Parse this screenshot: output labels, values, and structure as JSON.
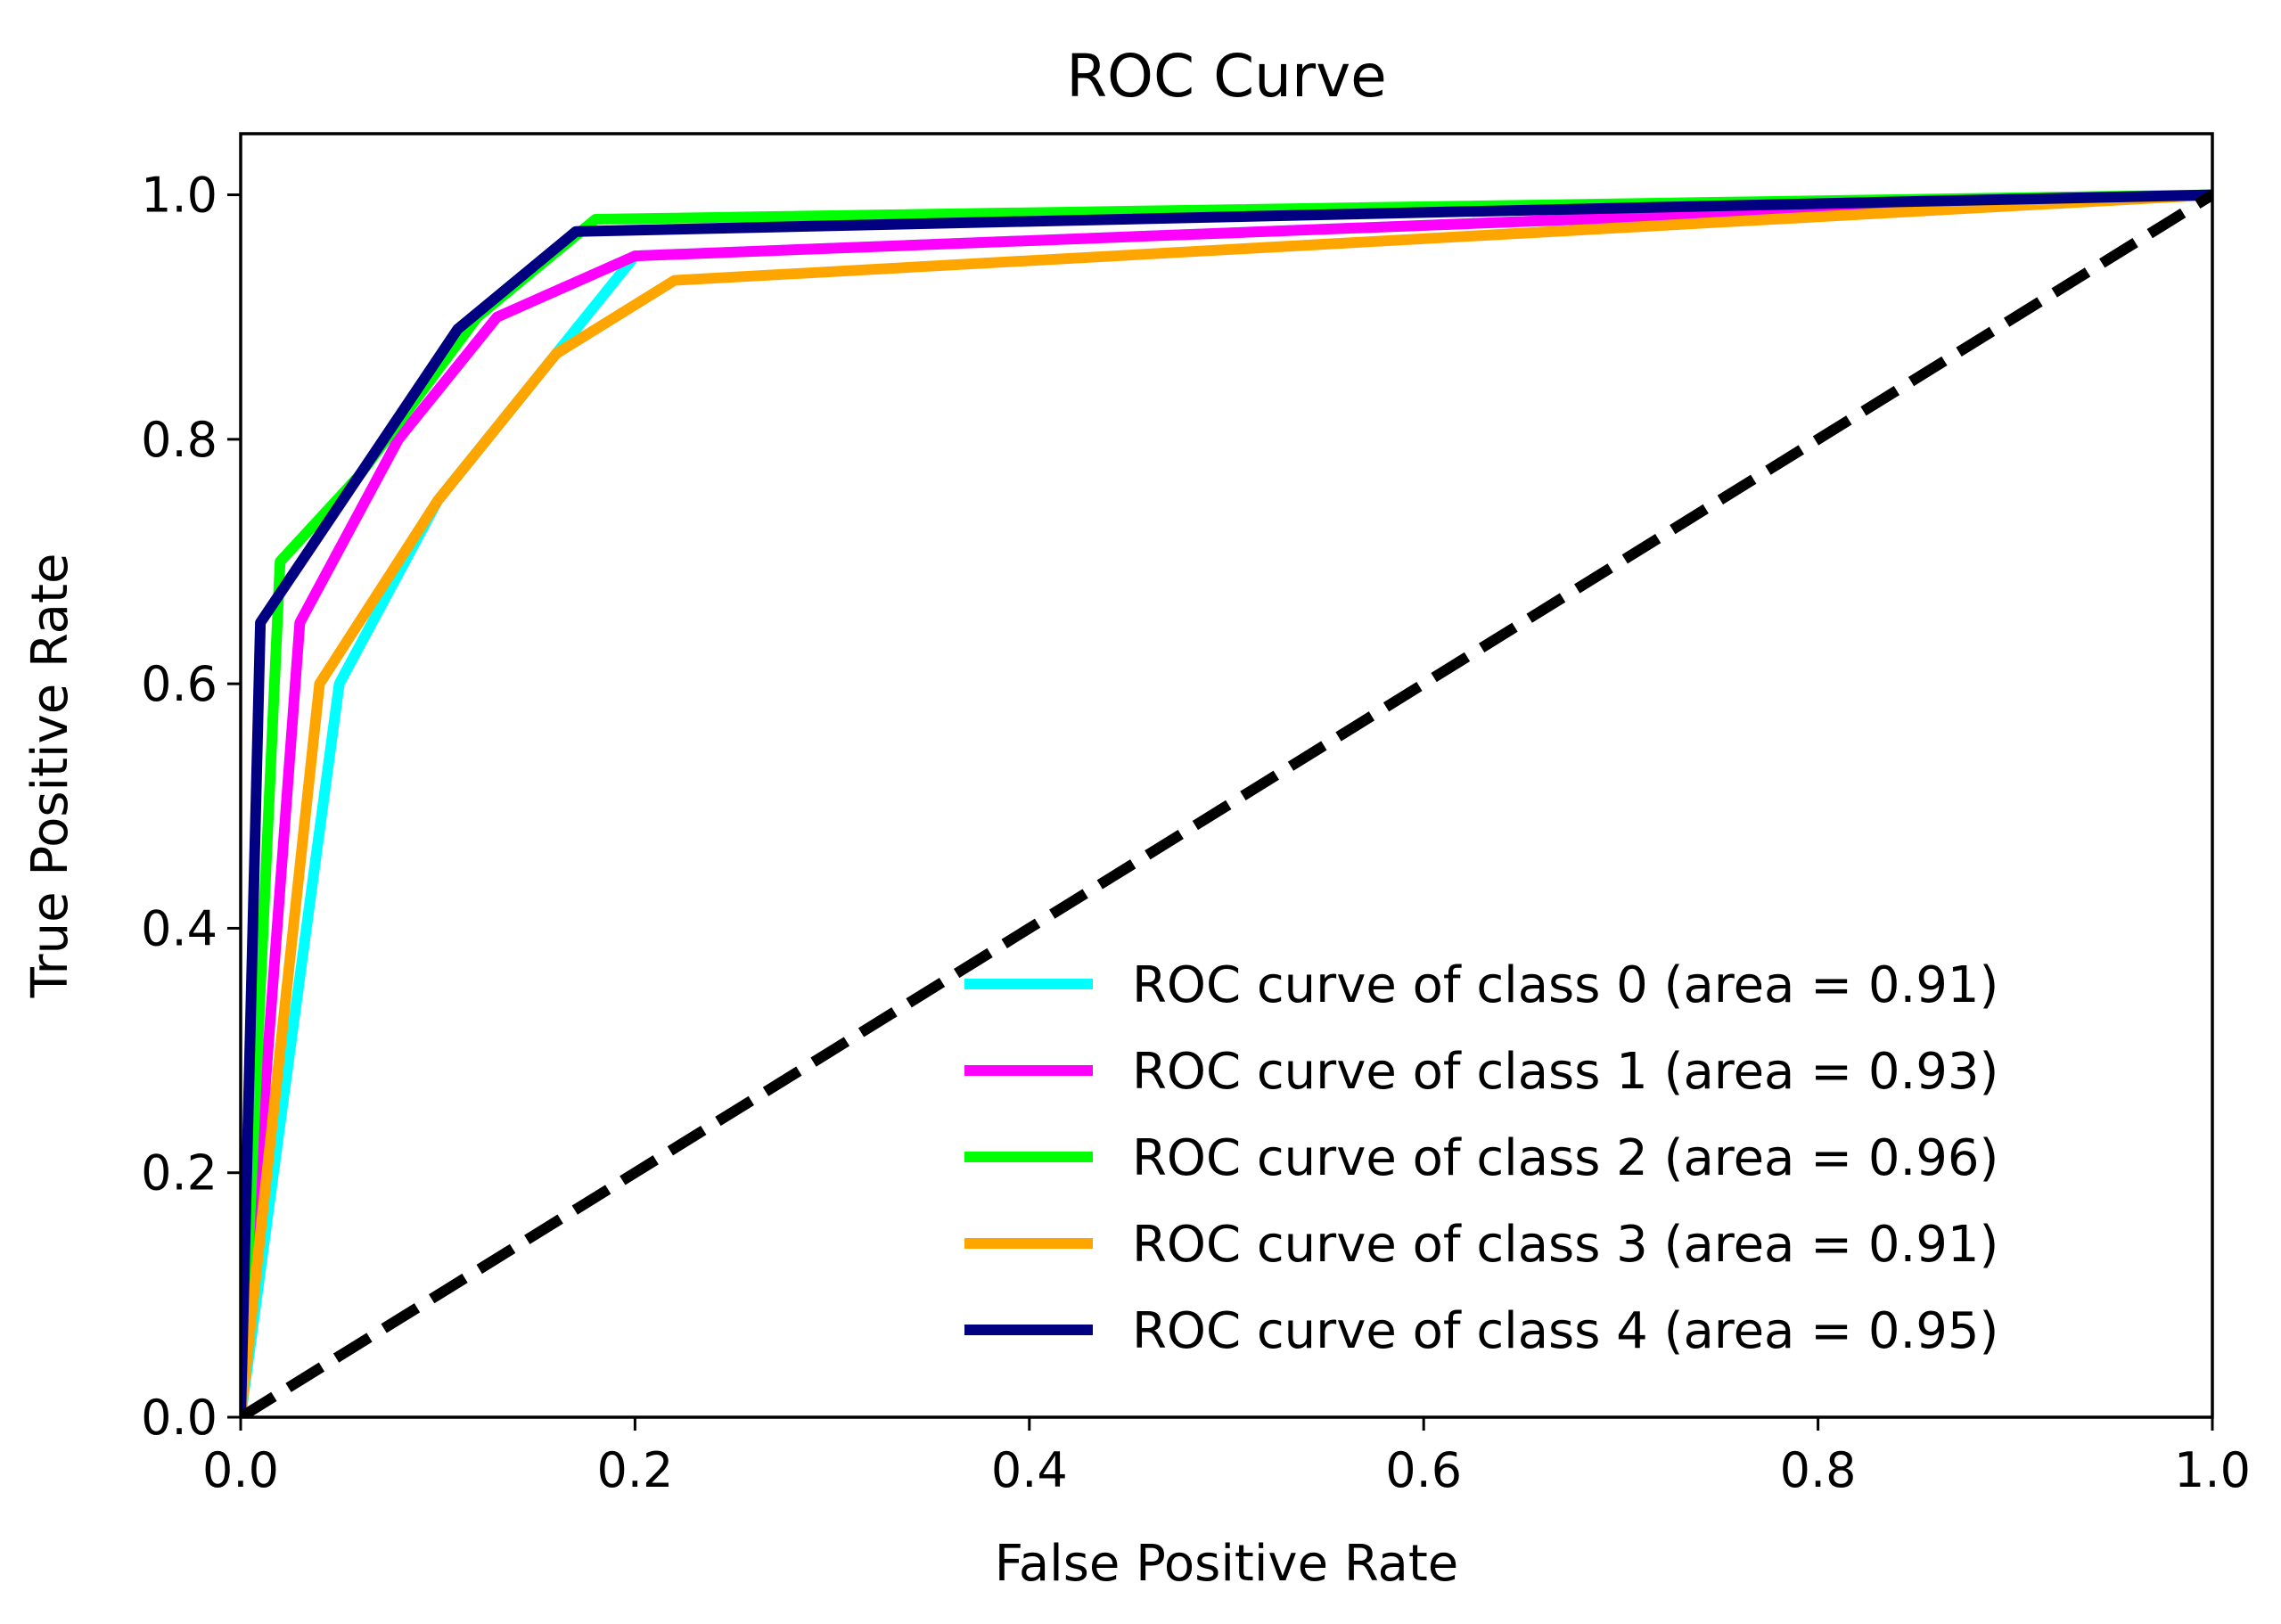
{
  "chart_data": {
    "type": "line",
    "title": "ROC Curve",
    "xlabel": "False Positive Rate",
    "ylabel": "True Positive Rate",
    "xlim": [
      0.0,
      1.0
    ],
    "ylim": [
      0.0,
      1.05
    ],
    "grid": false,
    "legend_position": "lower-right",
    "x_ticks": [
      "0.0",
      "0.2",
      "0.4",
      "0.6",
      "0.8",
      "1.0"
    ],
    "y_ticks": [
      "0.0",
      "0.2",
      "0.4",
      "0.6",
      "0.8",
      "1.0"
    ],
    "series": [
      {
        "name": "ROC curve of class 0 (area = 0.91)",
        "color": "#00ffff",
        "x": [
          0.0,
          0.05,
          0.1,
          0.16,
          0.2,
          1.0
        ],
        "y": [
          0.0,
          0.6,
          0.75,
          0.87,
          0.95,
          1.0
        ]
      },
      {
        "name": "ROC curve of class 1 (area = 0.93)",
        "color": "#ff00ff",
        "x": [
          0.0,
          0.03,
          0.08,
          0.13,
          0.2,
          1.0
        ],
        "y": [
          0.0,
          0.65,
          0.8,
          0.9,
          0.95,
          1.0
        ]
      },
      {
        "name": "ROC curve of class 2 (area = 0.96)",
        "color": "#00ff00",
        "x": [
          0.0,
          0.02,
          0.06,
          0.12,
          0.18,
          1.0
        ],
        "y": [
          0.0,
          0.7,
          0.77,
          0.9,
          0.98,
          1.0
        ]
      },
      {
        "name": "ROC curve of class 3 (area = 0.91)",
        "color": "#ffa500",
        "x": [
          0.0,
          0.04,
          0.1,
          0.16,
          0.22,
          1.0
        ],
        "y": [
          0.0,
          0.6,
          0.75,
          0.87,
          0.93,
          1.0
        ]
      },
      {
        "name": "ROC curve of class 4 (area = 0.95)",
        "color": "#000080",
        "x": [
          0.0,
          0.01,
          0.06,
          0.11,
          0.17,
          1.0
        ],
        "y": [
          0.0,
          0.65,
          0.77,
          0.89,
          0.97,
          1.0
        ]
      }
    ],
    "reference_line": {
      "color": "#000000",
      "x": [
        0.0,
        1.0
      ],
      "y": [
        0.0,
        1.0
      ]
    }
  }
}
